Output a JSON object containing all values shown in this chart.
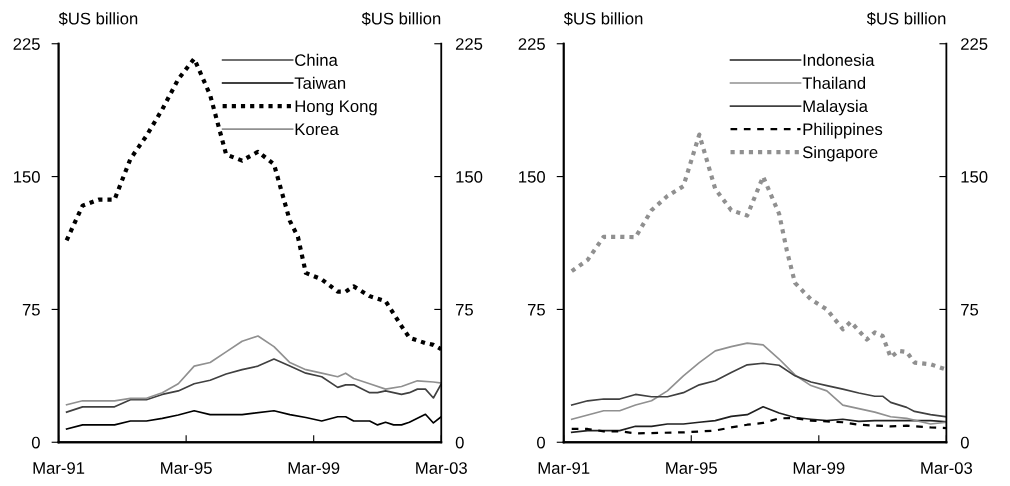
{
  "chart_data": [
    {
      "type": "line",
      "ylabel": "$US billion",
      "y2label": "$US billion",
      "xlim": [
        "1991-03",
        "2003-03"
      ],
      "xticks": [
        {
          "value": "1991-03",
          "label": "Mar-91"
        },
        {
          "value": "1995-03",
          "label": "Mar-95"
        },
        {
          "value": "1999-03",
          "label": "Mar-99"
        },
        {
          "value": "2003-03",
          "label": "Mar-03"
        }
      ],
      "ylim": [
        0,
        225
      ],
      "yticks": [
        0,
        75,
        150,
        225
      ],
      "y2lim": [
        0,
        225
      ],
      "y2ticks": [
        0,
        75,
        150,
        225
      ],
      "grid": false,
      "legend": "top right",
      "marker": "none",
      "series": [
        {
          "name": "China",
          "color": "#404040",
          "line_style": "solid",
          "x": [
            "1991-06",
            "1991-12",
            "1992-12",
            "1993-06",
            "1993-12",
            "1994-06",
            "1994-12",
            "1995-06",
            "1995-12",
            "1996-06",
            "1996-12",
            "1997-06",
            "1997-12",
            "1998-06",
            "1998-12",
            "1999-06",
            "1999-12",
            "2000-03",
            "2000-06",
            "2000-12",
            "2001-03",
            "2001-06",
            "2001-12",
            "2002-03",
            "2002-06",
            "2002-09",
            "2002-12",
            "2003-03"
          ],
          "values": [
            17,
            20,
            20,
            24,
            24,
            27,
            29,
            33,
            35,
            38.5,
            41,
            43,
            47,
            43,
            39,
            37,
            31,
            32.4,
            32.4,
            28,
            28,
            29,
            27,
            28,
            30,
            30,
            25,
            33
          ]
        },
        {
          "name": "Taiwan",
          "color": "#000000",
          "line_style": "solid",
          "x": [
            "1991-06",
            "1991-12",
            "1992-12",
            "1993-06",
            "1993-12",
            "1994-06",
            "1994-12",
            "1995-06",
            "1995-12",
            "1996-12",
            "1997-12",
            "1998-06",
            "1998-12",
            "1999-06",
            "1999-12",
            "2000-03",
            "2000-06",
            "2000-12",
            "2001-03",
            "2001-06",
            "2001-09",
            "2001-12",
            "2002-03",
            "2002-09",
            "2002-12",
            "2003-03"
          ],
          "values": [
            7.5,
            9.8,
            9.8,
            12,
            12,
            13.5,
            15.4,
            17.8,
            15.6,
            15.6,
            17.8,
            15.6,
            14,
            12,
            14.4,
            14.4,
            12,
            12,
            9.8,
            11.3,
            9.8,
            9.8,
            11.3,
            15.8,
            10.9,
            14.4
          ]
        },
        {
          "name": "Hong Kong",
          "color": "#000000",
          "line_style": "dotted",
          "x": [
            "1991-06",
            "1991-12",
            "1992-06",
            "1992-12",
            "1993-06",
            "1993-12",
            "1994-06",
            "1994-12",
            "1995-06",
            "1995-12",
            "1996-06",
            "1996-12",
            "1997-06",
            "1997-12",
            "1998-06",
            "1998-09",
            "1998-12",
            "1999-06",
            "1999-12",
            "2000-03",
            "2000-06",
            "2000-12",
            "2001-06",
            "2001-12",
            "2002-03",
            "2002-09",
            "2002-12",
            "2003-03"
          ],
          "values": [
            114,
            133.6,
            137,
            137,
            160,
            173,
            188,
            205,
            216.6,
            196,
            162.5,
            159,
            164,
            157,
            125,
            116,
            95.6,
            92,
            85,
            85,
            88,
            82.5,
            79.7,
            65.6,
            59,
            56,
            55,
            52.5
          ]
        },
        {
          "name": "Korea",
          "color": "#909090",
          "line_style": "solid",
          "x": [
            "1991-06",
            "1991-12",
            "1992-12",
            "1993-06",
            "1993-12",
            "1994-06",
            "1994-12",
            "1995-06",
            "1995-12",
            "1996-06",
            "1996-12",
            "1997-06",
            "1997-12",
            "1998-06",
            "1998-12",
            "1999-06",
            "1999-12",
            "2000-03",
            "2000-06",
            "2000-12",
            "2001-06",
            "2001-12",
            "2002-06",
            "2002-12",
            "2003-03"
          ],
          "values": [
            21.2,
            23.4,
            23.4,
            24.8,
            24.8,
            28,
            33,
            43,
            45,
            51,
            57,
            60,
            54,
            45,
            41,
            39,
            37,
            39,
            36,
            33,
            30,
            31.5,
            34.7,
            34,
            33.4
          ]
        }
      ]
    },
    {
      "type": "line",
      "ylabel": "$US billion",
      "y2label": "$US billion",
      "xlim": [
        "1991-03",
        "2003-03"
      ],
      "xticks": [
        {
          "value": "1991-03",
          "label": "Mar-91"
        },
        {
          "value": "1995-03",
          "label": "Mar-95"
        },
        {
          "value": "1999-03",
          "label": "Mar-99"
        },
        {
          "value": "2003-03",
          "label": "Mar-03"
        }
      ],
      "ylim": [
        0,
        225
      ],
      "yticks": [
        0,
        75,
        150,
        225
      ],
      "y2lim": [
        0,
        225
      ],
      "y2ticks": [
        0,
        75,
        150,
        225
      ],
      "grid": false,
      "legend": "top right",
      "marker": "none",
      "series": [
        {
          "name": "Indonesia",
          "color": "#202020",
          "line_style": "solid",
          "x": [
            "1991-06",
            "1991-12",
            "1992-12",
            "1993-06",
            "1993-12",
            "1994-06",
            "1994-12",
            "1995-06",
            "1995-12",
            "1996-06",
            "1996-12",
            "1997-06",
            "1997-12",
            "1998-06",
            "1998-12",
            "1999-06",
            "1999-12",
            "2000-06",
            "2000-12",
            "2002-09",
            "2003-03"
          ],
          "values": [
            5.6,
            6.6,
            6.6,
            9,
            9,
            10.3,
            10.3,
            11.3,
            12.2,
            14.6,
            15.6,
            20,
            16.5,
            14,
            13,
            12.2,
            13,
            11.8,
            12.2,
            12.2,
            11.6
          ]
        },
        {
          "name": "Thailand",
          "color": "#909090",
          "line_style": "solid",
          "x": [
            "1991-06",
            "1992-06",
            "1992-12",
            "1993-06",
            "1993-12",
            "1994-06",
            "1994-12",
            "1995-06",
            "1995-12",
            "1996-06",
            "1996-12",
            "1997-06",
            "1997-12",
            "1998-06",
            "1998-12",
            "1999-06",
            "1999-12",
            "2000-06",
            "2000-12",
            "2001-06",
            "2001-12",
            "2002-09",
            "2003-03"
          ],
          "values": [
            13,
            17.8,
            17.8,
            21,
            23.4,
            29,
            37.5,
            45,
            51.6,
            54,
            56,
            55,
            47,
            38,
            32,
            29,
            21,
            19,
            17,
            14.4,
            13.5,
            10.3,
            11.3
          ]
        },
        {
          "name": "Malaysia",
          "color": "#404040",
          "line_style": "solid",
          "x": [
            "1991-06",
            "1991-12",
            "1992-06",
            "1992-12",
            "1993-06",
            "1993-12",
            "1994-06",
            "1994-12",
            "1995-06",
            "1995-12",
            "1996-06",
            "1996-12",
            "1997-06",
            "1997-12",
            "1998-06",
            "1998-12",
            "1999-06",
            "1999-12",
            "2000-06",
            "2000-12",
            "2001-03",
            "2001-06",
            "2001-12",
            "2002-03",
            "2002-09",
            "2003-03"
          ],
          "values": [
            21,
            23.4,
            24.4,
            24.4,
            27,
            25.7,
            25.7,
            28,
            32.4,
            34.7,
            39.4,
            43.7,
            44.6,
            43.5,
            37.5,
            34,
            32,
            30,
            27.8,
            26,
            26,
            22.5,
            19.7,
            17.4,
            15.6,
            14.4
          ]
        },
        {
          "name": "Philippines",
          "color": "#000000",
          "line_style": "dashed",
          "x": [
            "1991-06",
            "1991-12",
            "1992-06",
            "1992-12",
            "1993-06",
            "1994-12",
            "1995-12",
            "1996-06",
            "1996-12",
            "1997-06",
            "1997-12",
            "1998-06",
            "1998-12",
            "1999-06",
            "1999-12",
            "2000-06",
            "2000-12",
            "2001-06",
            "2001-12",
            "2002-09",
            "2003-03"
          ],
          "values": [
            7.5,
            7.5,
            6.2,
            6.2,
            5,
            5.6,
            6.6,
            8.4,
            9.9,
            10.9,
            13.5,
            13.7,
            12.2,
            11.8,
            11.3,
            9.9,
            9.4,
            9,
            9.4,
            8.4,
            8
          ]
        },
        {
          "name": "Singapore",
          "color": "#909090",
          "line_style": "dotted",
          "x": [
            "1991-06",
            "1991-12",
            "1992-06",
            "1992-12",
            "1993-06",
            "1993-12",
            "1994-06",
            "1994-12",
            "1995-06",
            "1995-12",
            "1996-06",
            "1996-12",
            "1997-06",
            "1997-12",
            "1998-03",
            "1998-06",
            "1998-12",
            "1999-06",
            "1999-12",
            "2000-03",
            "2000-09",
            "2000-12",
            "2001-03",
            "2001-06",
            "2001-09",
            "2001-12",
            "2002-03",
            "2002-09",
            "2003-03"
          ],
          "values": [
            96.6,
            103,
            116,
            116,
            115.8,
            131,
            139,
            144.6,
            173.7,
            143,
            131,
            128,
            150,
            129,
            108,
            90,
            80.6,
            75,
            63.8,
            68,
            58,
            62,
            60,
            48,
            51.6,
            51,
            45,
            44,
            41
          ]
        }
      ]
    }
  ]
}
